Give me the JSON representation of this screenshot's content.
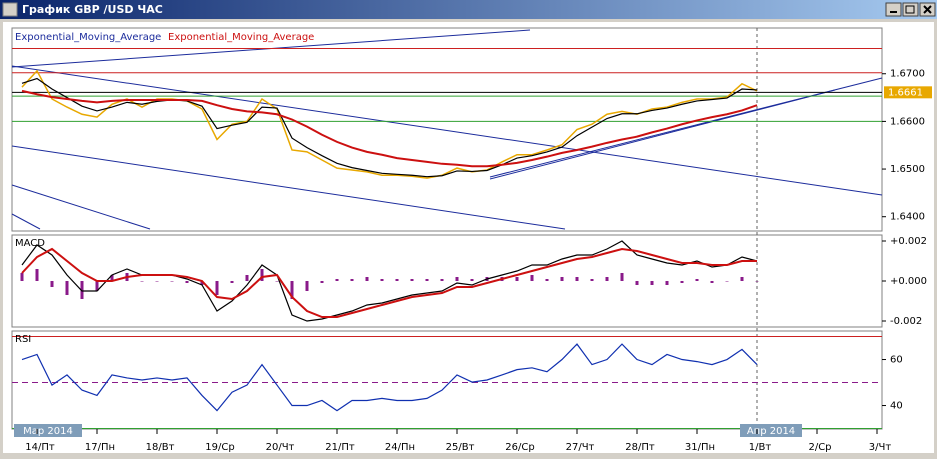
{
  "window": {
    "title": "График GBP /USD ЧАС"
  },
  "chart_data": [
    {
      "type": "line",
      "categories": [
        null,
        "14/Пт",
        null,
        null,
        null,
        "17/Пн",
        null,
        null,
        null,
        "18/Вт",
        null,
        null,
        null,
        "19/Ср",
        null,
        null,
        null,
        "20/Чт",
        null,
        null,
        null,
        "21/Пт",
        null,
        null,
        null,
        "24/Пн",
        null,
        null,
        null,
        "25/Вт",
        null,
        null,
        null,
        "26/Ср",
        null,
        null,
        null,
        "27/Чт",
        null,
        null,
        null,
        "28/Пт",
        null,
        null,
        null,
        "31/Пн",
        null,
        null,
        null,
        "1/Вт",
        null,
        null,
        null,
        "2/Ср",
        null,
        null,
        null,
        "3/Чт"
      ],
      "months": [
        "Мар 2014",
        "Апр 2014"
      ],
      "ylim": [
        1.637,
        1.6796
      ],
      "yticks": [
        {
          "value": 1.67,
          "label": "1.6700"
        },
        {
          "value": 1.66,
          "label": "1.6600"
        },
        {
          "value": 1.65,
          "label": "1.6500"
        },
        {
          "value": 1.64,
          "label": "1.6400"
        }
      ],
      "last_price": 1.6661,
      "levels": [
        {
          "value": 1.6753,
          "color": "#cc2020"
        },
        {
          "value": 1.6702,
          "color": "#cc2020"
        },
        {
          "value": 1.6653,
          "color": "#30a030"
        },
        {
          "value": 1.66,
          "color": "#30a030"
        }
      ],
      "series": [
        {
          "color": "#e8a800",
          "values": [
            1.6672,
            1.6706,
            1.6647,
            1.663,
            1.6615,
            1.6609,
            1.6636,
            1.6647,
            1.663,
            1.6647,
            1.6647,
            1.6643,
            1.6626,
            1.6562,
            1.6594,
            1.66,
            1.6647,
            1.6626,
            1.654,
            1.6536,
            1.6519,
            1.6502,
            1.6498,
            1.6494,
            1.6487,
            1.6487,
            1.6485,
            1.6481,
            1.6487,
            1.6502,
            1.6494,
            1.6498,
            1.6515,
            1.653,
            1.653,
            1.654,
            1.6551,
            1.6583,
            1.6594,
            1.6615,
            1.6621,
            1.6615,
            1.6626,
            1.663,
            1.664,
            1.6647,
            1.6647,
            1.6651,
            1.6679,
            1.6664,
            null,
            null,
            null,
            null,
            null,
            null,
            null,
            null
          ]
        },
        {
          "name": "Exponential_Moving_Average",
          "color": "#000000",
          "values": [
            1.668,
            1.669,
            1.6668,
            1.665,
            1.6632,
            1.6622,
            1.663,
            1.664,
            1.6636,
            1.6642,
            1.6645,
            1.6643,
            1.6632,
            1.6585,
            1.6592,
            1.6598,
            1.663,
            1.6628,
            1.6565,
            1.6545,
            1.6528,
            1.6512,
            1.6503,
            1.6497,
            1.6491,
            1.6489,
            1.6487,
            1.6484,
            1.6486,
            1.6496,
            1.6495,
            1.6497,
            1.6509,
            1.6523,
            1.6528,
            1.6536,
            1.6546,
            1.657,
            1.6588,
            1.6606,
            1.6616,
            1.6616,
            1.6623,
            1.6628,
            1.6636,
            1.6643,
            1.6646,
            1.6649,
            1.6668,
            1.6666,
            null,
            null,
            null,
            null,
            null,
            null,
            null,
            null
          ]
        },
        {
          "name": "Exponential_Moving_Average",
          "color": "#cc1010",
          "values": [
            1.6664,
            1.6657,
            1.6651,
            1.6647,
            1.6643,
            1.664,
            1.6643,
            1.6645,
            1.6645,
            1.6645,
            1.6645,
            1.6645,
            1.6643,
            1.6634,
            1.6626,
            1.6621,
            1.6619,
            1.6615,
            1.6604,
            1.6589,
            1.6572,
            1.6557,
            1.6545,
            1.6536,
            1.653,
            1.6523,
            1.6519,
            1.6515,
            1.6511,
            1.6509,
            1.6506,
            1.6506,
            1.6509,
            1.6513,
            1.6519,
            1.6526,
            1.6534,
            1.654,
            1.6547,
            1.6555,
            1.6562,
            1.6568,
            1.6577,
            1.6585,
            1.6594,
            1.6602,
            1.6609,
            1.6615,
            1.6623,
            1.6634,
            null,
            null,
            null,
            null,
            null,
            null,
            null,
            null
          ]
        }
      ]
    },
    {
      "type": "line",
      "title": "MACD",
      "ylim": [
        -0.0023,
        0.0023
      ],
      "yticks": [
        {
          "value": 0.002,
          "label": "+0.002"
        },
        {
          "value": 0,
          "label": "+0.000"
        },
        {
          "value": -0.002,
          "label": "-0.002"
        }
      ],
      "series": [
        {
          "style": "bar",
          "color": "#8a1a8a",
          "values": [
            0.0004,
            0.0006,
            -0.0003,
            -0.0007,
            -0.0009,
            -0.0005,
            0.0003,
            0.0004,
            0,
            0,
            0,
            -0.0001,
            -0.0002,
            -0.0007,
            -0.0001,
            0.0003,
            0.0006,
            0,
            -0.0009,
            -0.0005,
            -0.0001,
            0.0001,
            0.0001,
            0.0002,
            0.0001,
            0.0001,
            0.0001,
            0.0001,
            0.0001,
            0.0002,
            0.0001,
            0.0002,
            0.0002,
            0.0002,
            0.0003,
            0.0001,
            0.0002,
            0.0002,
            0.0001,
            0.0002,
            0.0004,
            -0.0002,
            -0.0002,
            -0.0002,
            -0.0001,
            0.0001,
            -0.0001,
            0,
            0.0002,
            0,
            null,
            null,
            null,
            null,
            null,
            null,
            null,
            null
          ]
        },
        {
          "color": "#000000",
          "values": [
            0.0008,
            0.0018,
            0.0013,
            0.0003,
            -0.0005,
            -0.0005,
            0.0003,
            0.0006,
            0.0003,
            0.0003,
            0.0003,
            0.0001,
            -0.0002,
            -0.0015,
            -0.001,
            -0.0002,
            0.0008,
            0.0003,
            -0.0017,
            -0.002,
            -0.0019,
            -0.0017,
            -0.0015,
            -0.0012,
            -0.0011,
            -0.0009,
            -0.0007,
            -0.0006,
            -0.0005,
            -0.0001,
            -0.0002,
            0.0001,
            0.0003,
            0.0005,
            0.0008,
            0.0008,
            0.0011,
            0.0013,
            0.0013,
            0.0016,
            0.002,
            0.0013,
            0.0011,
            0.0009,
            0.0008,
            0.001,
            0.0007,
            0.0008,
            0.0012,
            0.001,
            null,
            null,
            null,
            null,
            null,
            null,
            null,
            null
          ]
        },
        {
          "color": "#cc1010",
          "values": [
            0.0004,
            0.0012,
            0.0016,
            0.001,
            0.0004,
            0,
            0,
            0.0002,
            0.0003,
            0.0003,
            0.0003,
            0.0002,
            0,
            -0.0008,
            -0.0009,
            -0.0005,
            0.0002,
            0.0003,
            -0.0008,
            -0.0015,
            -0.0018,
            -0.0018,
            -0.0016,
            -0.0014,
            -0.0012,
            -0.001,
            -0.0008,
            -0.0007,
            -0.0006,
            -0.0003,
            -0.0003,
            -0.0001,
            0.0001,
            0.0003,
            0.0005,
            0.0007,
            0.0009,
            0.0011,
            0.0012,
            0.0014,
            0.0016,
            0.0015,
            0.0013,
            0.0011,
            0.0009,
            0.0009,
            0.0008,
            0.0008,
            0.001,
            0.001,
            null,
            null,
            null,
            null,
            null,
            null,
            null,
            null
          ]
        }
      ]
    },
    {
      "type": "line",
      "title": "RSI",
      "ylim": [
        29.8,
        72.4
      ],
      "yticks": [
        40,
        60
      ],
      "levels": [
        {
          "value": 70,
          "color": "#cc2020"
        },
        {
          "value": 50,
          "color": "#8a1a8a",
          "dash": true
        },
        {
          "value": 30,
          "color": "#30a030"
        }
      ],
      "series": [
        {
          "color": "#1030b0",
          "values": [
            60,
            62.2,
            48.9,
            53.3,
            46.7,
            44.4,
            53.3,
            52,
            51.1,
            52,
            51.1,
            52,
            44.4,
            37.8,
            45.8,
            48.9,
            57.8,
            48.9,
            40,
            40,
            42.2,
            37.8,
            42.2,
            42.2,
            43.1,
            42.2,
            42.2,
            43.1,
            46.7,
            53.3,
            50.2,
            51.1,
            53.3,
            55.6,
            56.4,
            54.7,
            60,
            66.7,
            57.8,
            60,
            66.7,
            60,
            57.8,
            62.2,
            60,
            59.1,
            57.8,
            60,
            64.4,
            57.8,
            null,
            null,
            null,
            null,
            null,
            null,
            null,
            null
          ]
        }
      ]
    }
  ]
}
